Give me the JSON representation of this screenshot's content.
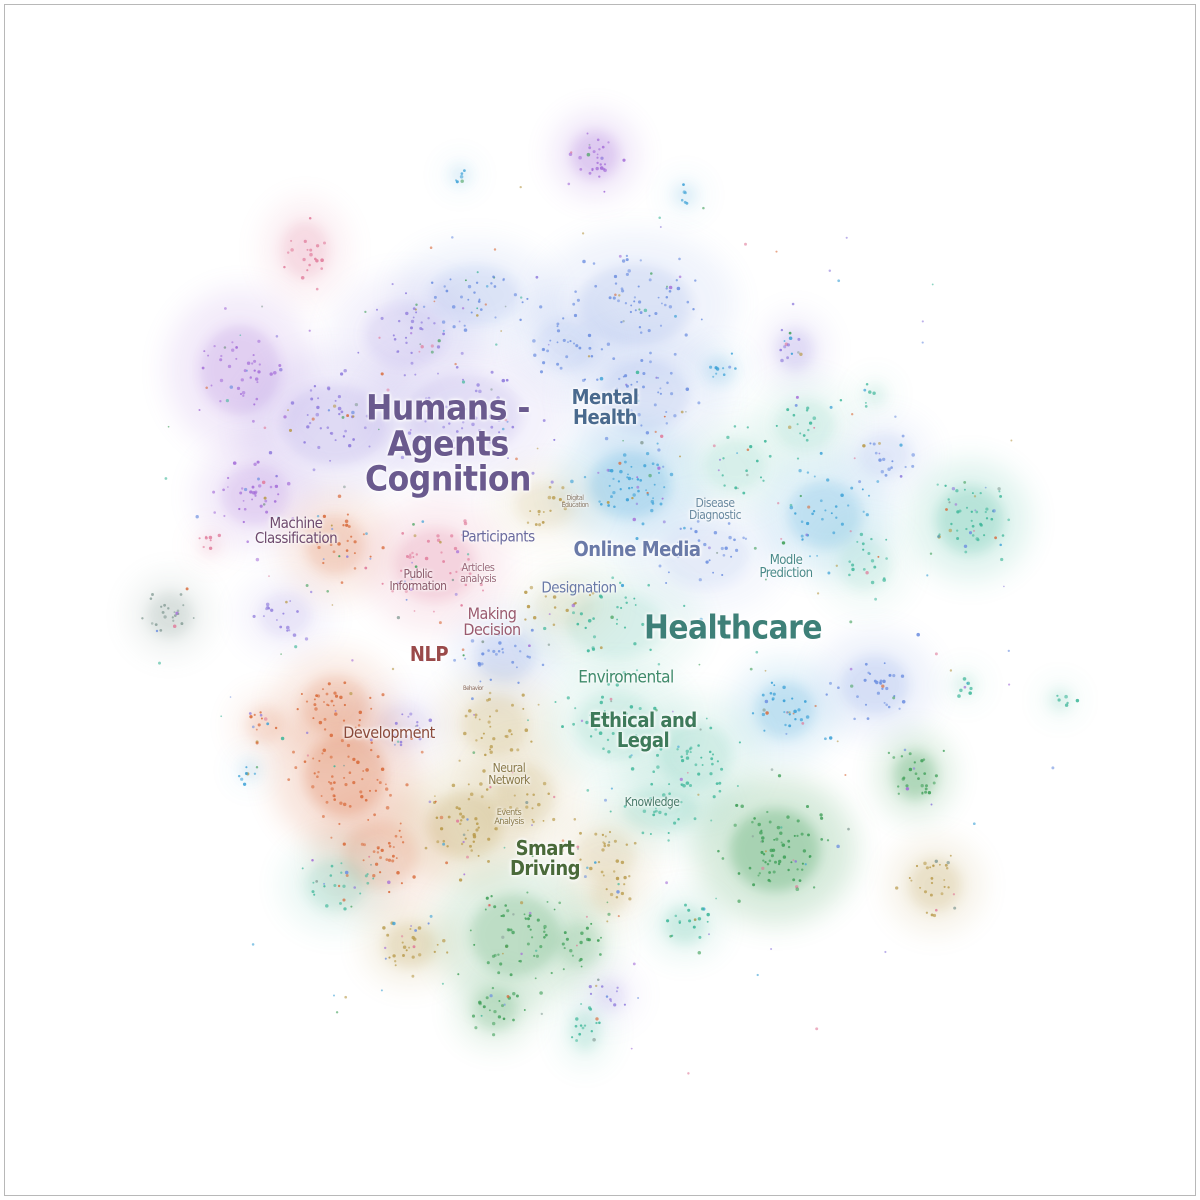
{
  "palette": {
    "purple": "#a46dd8",
    "violet": "#8f7bdc",
    "blue": "#6d8fe0",
    "sky": "#3aa0d6",
    "teal": "#3fb79a",
    "green": "#3f9f58",
    "olive": "#b89a4a",
    "orange": "#d86a3a",
    "pink": "#e07a9a",
    "grey": "#8aa09a"
  },
  "labels": {
    "humans_agents_cognition": "Humans -\nAgents\nCognition",
    "mental_health": "Mental\nHealth",
    "machine_classification": "Machine\nClassification",
    "participants": "Participants",
    "online_media": "Online Media",
    "digital_education": "Digital\nEducation",
    "disease_diagnostic": "Disease\nDiagnostic",
    "public_information": "Public\nInformation",
    "articles_analysis": "Articles\nanalysis",
    "modle_prediction": "Modle\nPrediction",
    "designation": "Designation",
    "making_decision": "Making\nDecision",
    "healthcare": "Healthcare",
    "nlp": "NLP",
    "enviromental": "Enviromental",
    "behavior": "Behavior",
    "ethical_and_legal": "Ethical and\nLegal",
    "development": "Development",
    "neural_network": "Neural\nNetwork",
    "knowledge": "Knowledge",
    "events_analysis": "Events\nAnalysis",
    "smart_driving": "Smart\nDriving"
  }
}
